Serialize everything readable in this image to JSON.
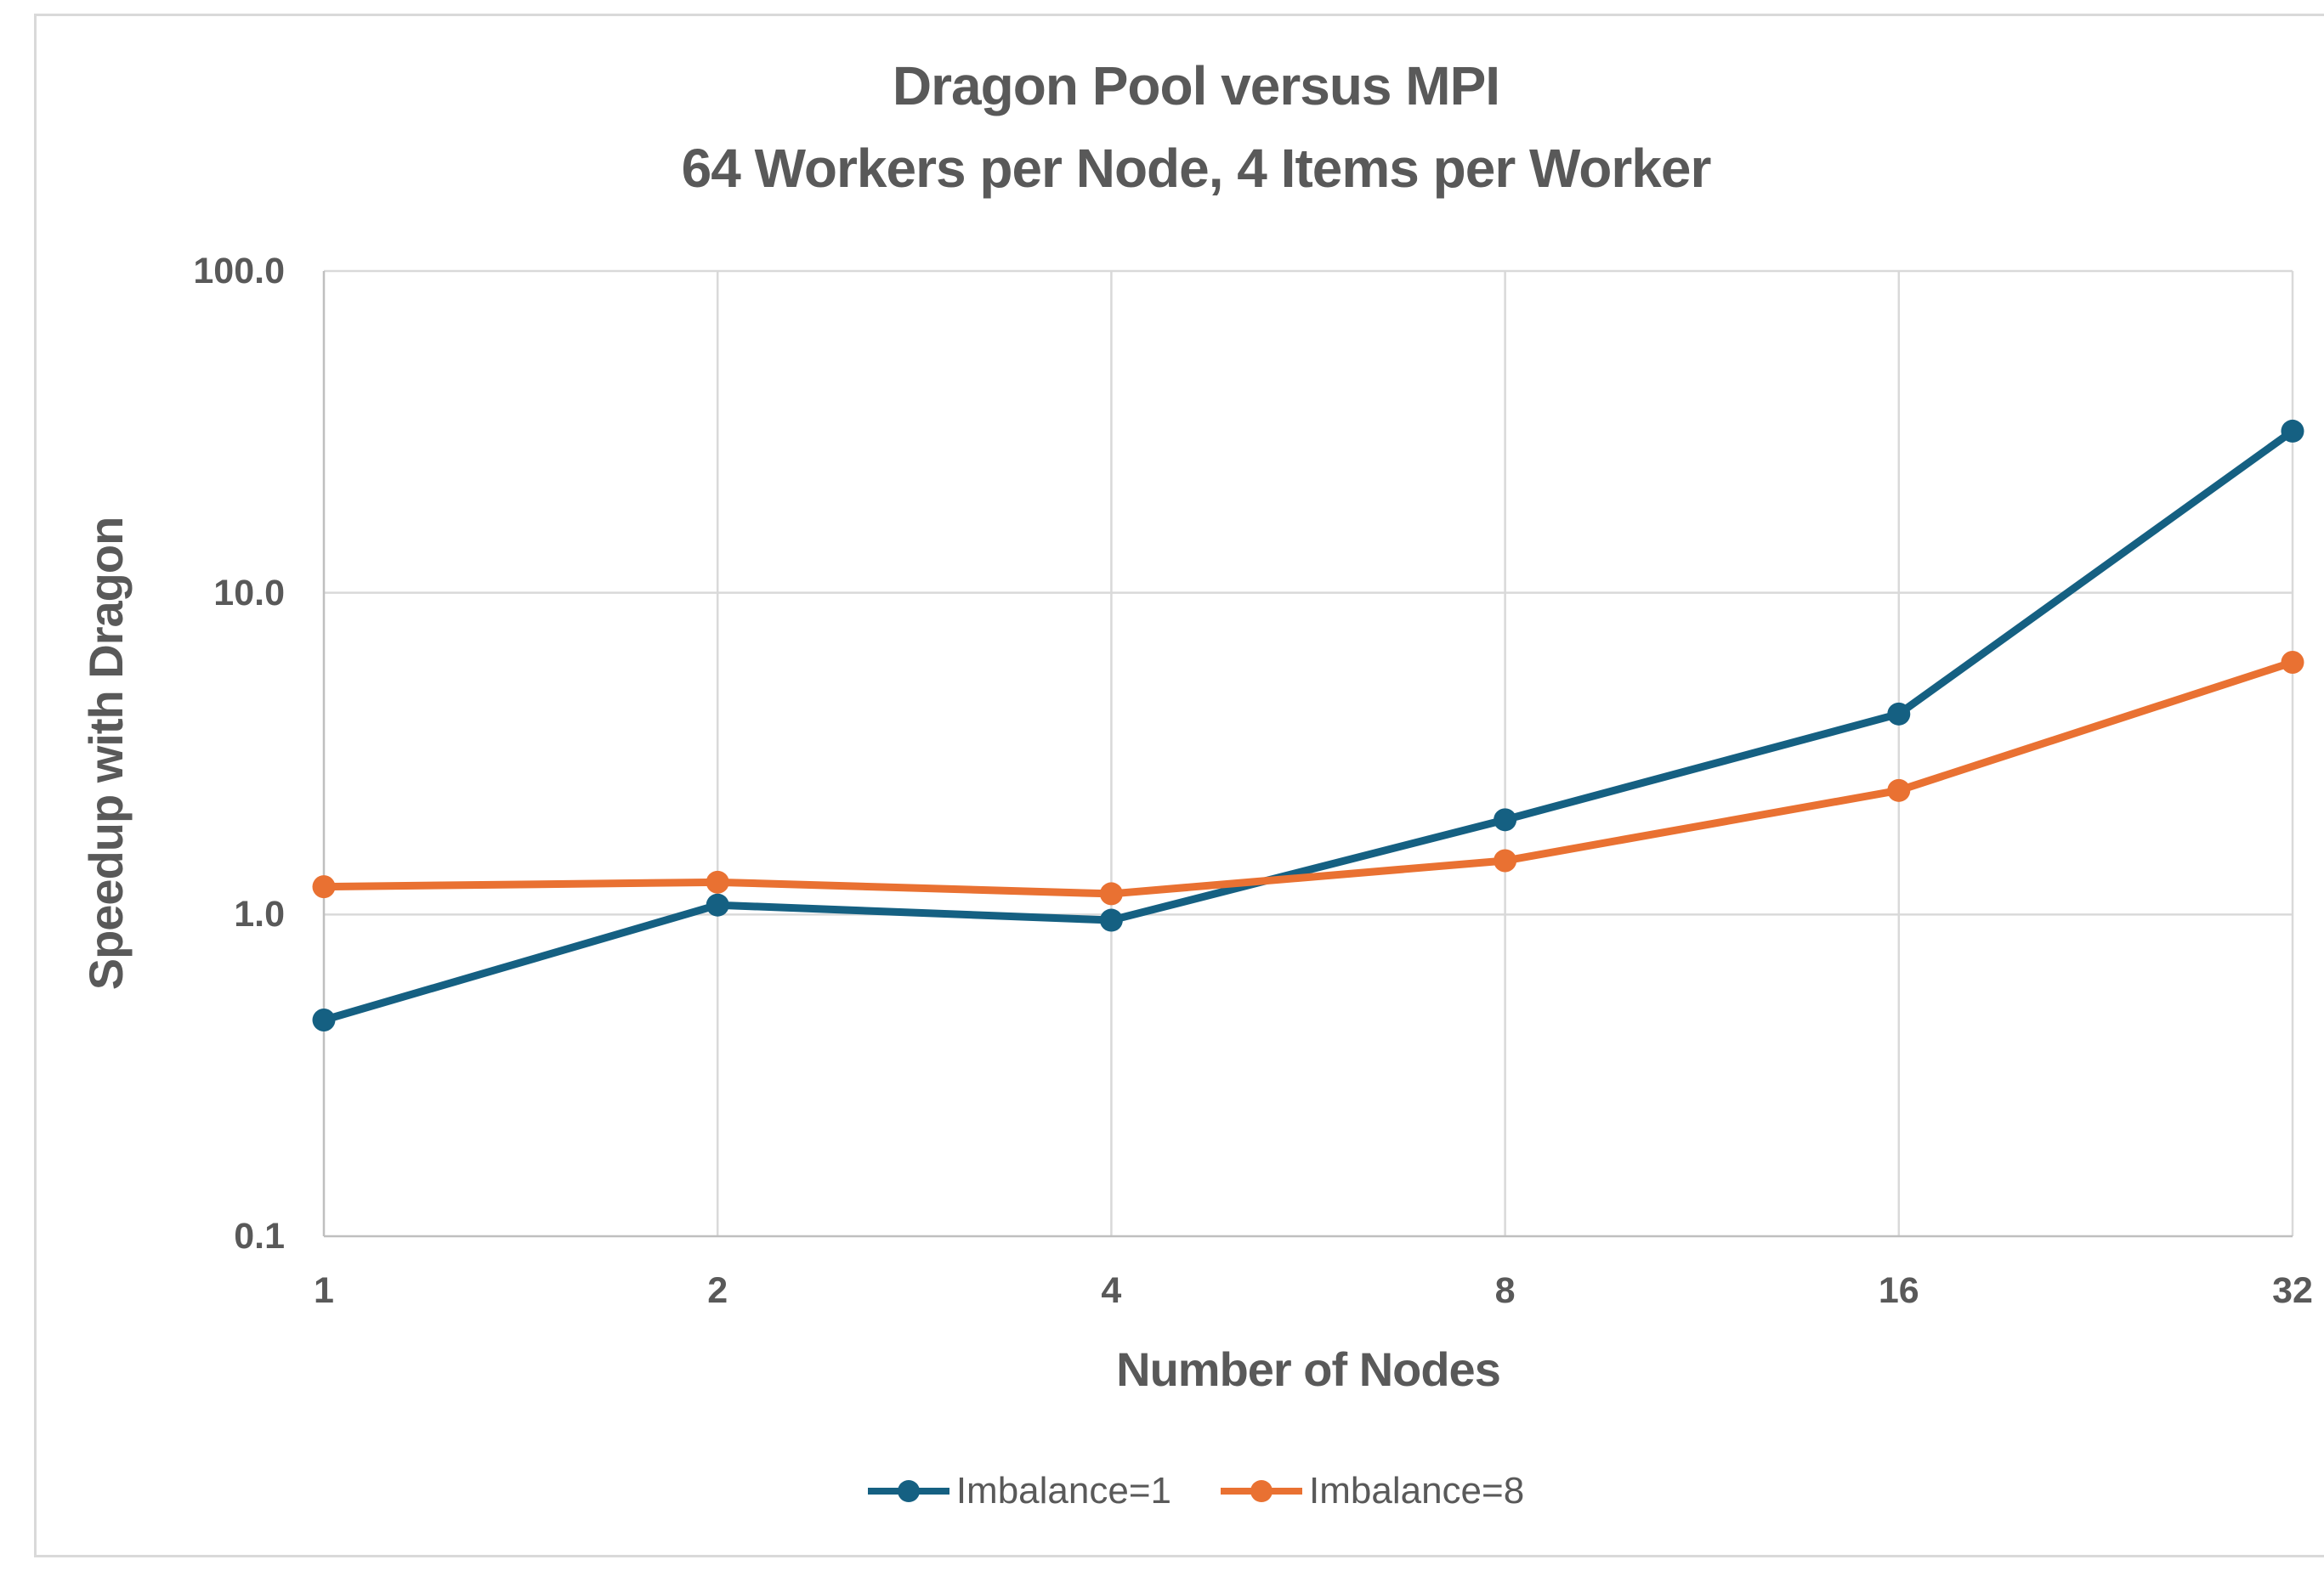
{
  "chart_data": {
    "type": "line",
    "title": "Dragon Pool versus MPI",
    "subtitle": "64 Workers per Node, 4 Items per Worker",
    "xlabel": "Number of Nodes",
    "ylabel": "Speedup with Dragon",
    "x": [
      1,
      2,
      4,
      8,
      16,
      32
    ],
    "x_scale": "log2",
    "y_scale": "log10",
    "ylim": [
      0.1,
      100.0
    ],
    "xlim": [
      1,
      32
    ],
    "y_tick_values": [
      100,
      10,
      1,
      0.1
    ],
    "y_tick_labels": [
      "100.0",
      "10.0",
      "1.0",
      "0.1"
    ],
    "x_tick_labels": [
      "1",
      "2",
      "4",
      "8",
      "16",
      "32"
    ],
    "grid": true,
    "legend_position": "bottom",
    "series": [
      {
        "name": "Imbalance=1",
        "color": "#156082",
        "values": [
          0.47,
          1.07,
          0.96,
          1.97,
          4.2,
          31.8
        ]
      },
      {
        "name": "Imbalance=8",
        "color": "#E97132",
        "values": [
          1.22,
          1.26,
          1.16,
          1.47,
          2.43,
          6.08
        ]
      }
    ]
  },
  "colors": {
    "text": "#595959",
    "gridline": "#D9D9D9",
    "axis_line": "#BFBFBF",
    "background": "#FFFFFF",
    "border": "#D9D9D9"
  }
}
